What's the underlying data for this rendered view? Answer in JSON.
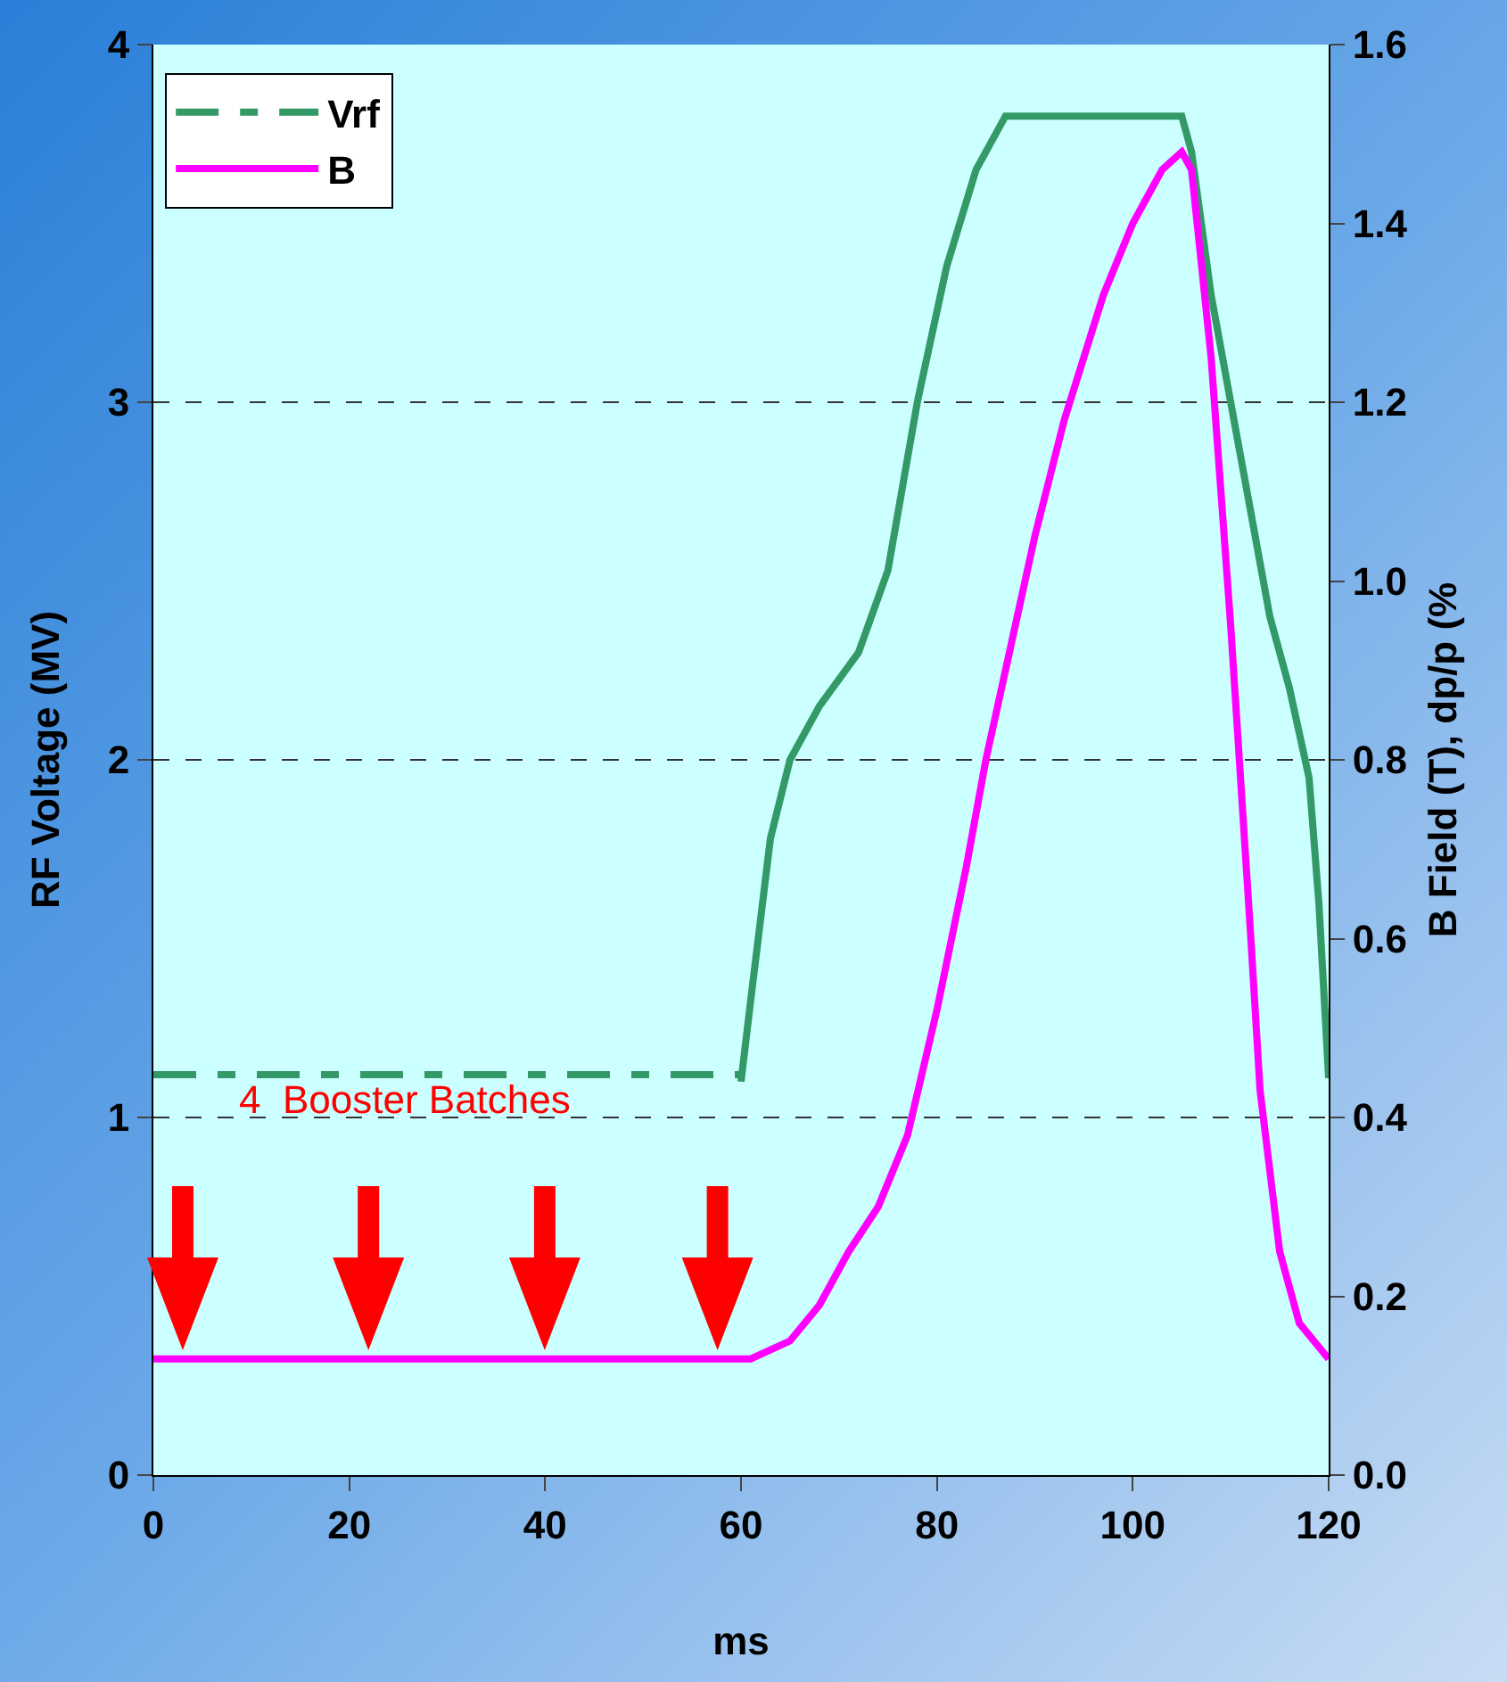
{
  "chart_data": {
    "type": "line",
    "xlabel": "ms",
    "ylabel": "RF Voltage (MV)",
    "y2label": "B Field (T), dp/p (%",
    "xlim": [
      0,
      120
    ],
    "xticks": [
      0,
      20,
      40,
      60,
      80,
      100,
      120
    ],
    "ylim": [
      0,
      4
    ],
    "yticks": [
      0,
      1,
      2,
      3,
      4
    ],
    "y2lim": [
      0,
      1.6
    ],
    "y2ticks": [
      {
        "value": 0,
        "label": "0.0"
      },
      {
        "value": 0.2,
        "label": "0.2"
      },
      {
        "value": 0.4,
        "label": "0.4"
      },
      {
        "value": 0.6,
        "label": "0.6"
      },
      {
        "value": 0.8,
        "label": "0.8"
      },
      {
        "value": 1,
        "label": "1.0"
      },
      {
        "value": 1.2,
        "label": "1.2"
      },
      {
        "value": 1.4,
        "label": "1.4"
      },
      {
        "value": 1.6,
        "label": "1.6"
      }
    ],
    "grid": "y",
    "legend": "top left",
    "marker": "none",
    "annotations": [
      "4  Booster Batches"
    ],
    "series": [
      {
        "name": "Vrf",
        "color": "#339966",
        "line_style": "dashed",
        "x": [
          0,
          60
        ],
        "values": [
          1.12,
          1.12
        ]
      },
      {
        "color": "#339966",
        "line_style": "solid",
        "x": [
          60,
          61,
          63,
          65,
          68,
          72,
          75,
          78,
          81,
          84,
          87,
          95,
          105,
          106,
          108,
          110,
          112,
          114,
          116,
          118,
          119,
          120
        ],
        "values": [
          1.1,
          1.33,
          1.78,
          2.0,
          2.15,
          2.3,
          2.53,
          3.0,
          3.38,
          3.65,
          3.8,
          3.8,
          3.8,
          3.7,
          3.3,
          3.0,
          2.7,
          2.4,
          2.2,
          1.95,
          1.6,
          1.11
        ]
      },
      {
        "name": "B",
        "color": "#ff00ff",
        "line_style": "solid",
        "axis": "y2",
        "x": [
          0,
          61,
          65,
          68,
          71,
          74,
          77,
          80,
          83,
          85,
          88,
          90,
          93,
          97,
          100,
          103,
          105,
          106,
          108,
          110,
          112,
          113,
          115,
          117,
          120
        ],
        "values": [
          0.13,
          0.13,
          0.15,
          0.19,
          0.25,
          0.3,
          0.38,
          0.52,
          0.68,
          0.8,
          0.95,
          1.05,
          1.18,
          1.32,
          1.4,
          1.46,
          1.48,
          1.46,
          1.25,
          0.95,
          0.61,
          0.43,
          0.25,
          0.17,
          0.13
        ]
      }
    ]
  }
}
